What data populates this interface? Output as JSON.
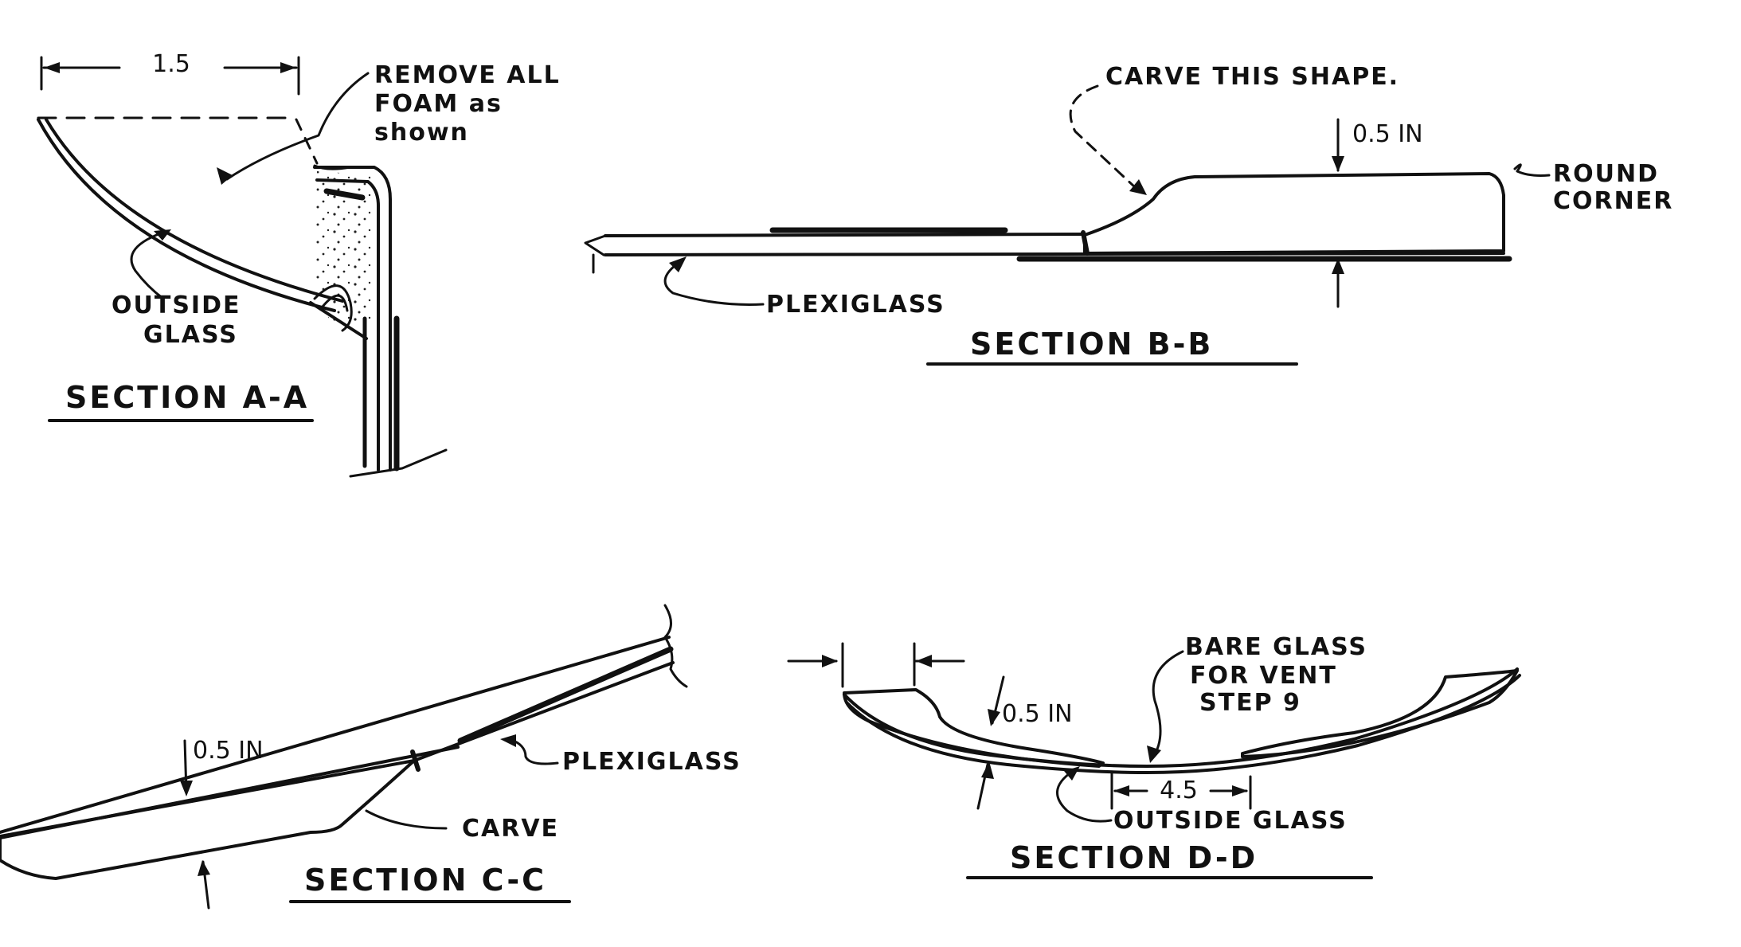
{
  "section_a": {
    "title": "SECTION A-A",
    "dimension": "1.5",
    "note_line1": "REMOVE ALL",
    "note_line2": "FOAM as",
    "note_line3": "shown",
    "label_outside_line1": "OUTSIDE",
    "label_outside_line2": "GLASS"
  },
  "section_b": {
    "title": "SECTION B-B",
    "note_carve": "CARVE THIS SHAPE.",
    "dimension": "0.5 IN",
    "round_line1": "ROUND",
    "round_line2": "CORNER",
    "label_plexiglass": "PLEXIGLASS"
  },
  "section_c": {
    "title": "SECTION C-C",
    "dimension": "0.5 IN",
    "label_plexiglass": "PLEXIGLASS",
    "label_carve": "CARVE"
  },
  "section_d": {
    "title": "SECTION D-D",
    "note_line1": "BARE GLASS",
    "note_line2": "FOR VENT",
    "note_line3": "STEP 9",
    "dimension_thickness": "0.5 IN",
    "dimension_width": "4.5",
    "label_outside": "OUTSIDE GLASS"
  }
}
